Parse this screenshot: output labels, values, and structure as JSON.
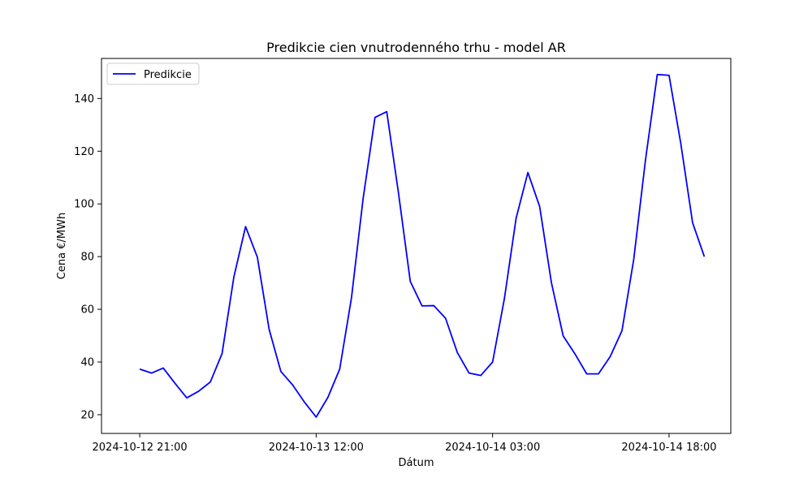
{
  "chart_data": {
    "type": "line",
    "title": "Predikcie cien vnutrodenného trhu - model AR",
    "xlabel": "Dátum",
    "ylabel": "Cena €/MWh",
    "x_start": "2024-10-12 21:00",
    "x_step_hours": 1,
    "xlim_hours_from_start": [
      -3.25,
      50.25
    ],
    "ylim": [
      12.9,
      155.2
    ],
    "grid": false,
    "legend_position": "upper-left",
    "x_tick_labels": [
      "2024-10-12 21:00",
      "2024-10-13 12:00",
      "2024-10-14 03:00",
      "2024-10-14 18:00"
    ],
    "x_tick_hours": [
      0,
      15,
      30,
      45
    ],
    "y_ticks": [
      20,
      40,
      60,
      80,
      100,
      120,
      140
    ],
    "series": [
      {
        "name": "Predikcie",
        "color": "#0000ff",
        "values": [
          37.3,
          35.8,
          37.7,
          31.9,
          26.4,
          28.9,
          32.4,
          43.2,
          72.2,
          91.4,
          79.8,
          52.4,
          36.4,
          31.3,
          24.8,
          19.1,
          26.6,
          37.3,
          64.3,
          102.3,
          132.8,
          135.0,
          104.1,
          70.6,
          61.3,
          61.4,
          56.6,
          43.6,
          35.8,
          34.9,
          40.0,
          64.0,
          94.6,
          111.9,
          99.0,
          70.1,
          49.9,
          43.1,
          35.5,
          35.5,
          42.1,
          51.9,
          79.0,
          116.8,
          149.1,
          148.8,
          122.9,
          92.9,
          80.0
        ]
      }
    ]
  }
}
